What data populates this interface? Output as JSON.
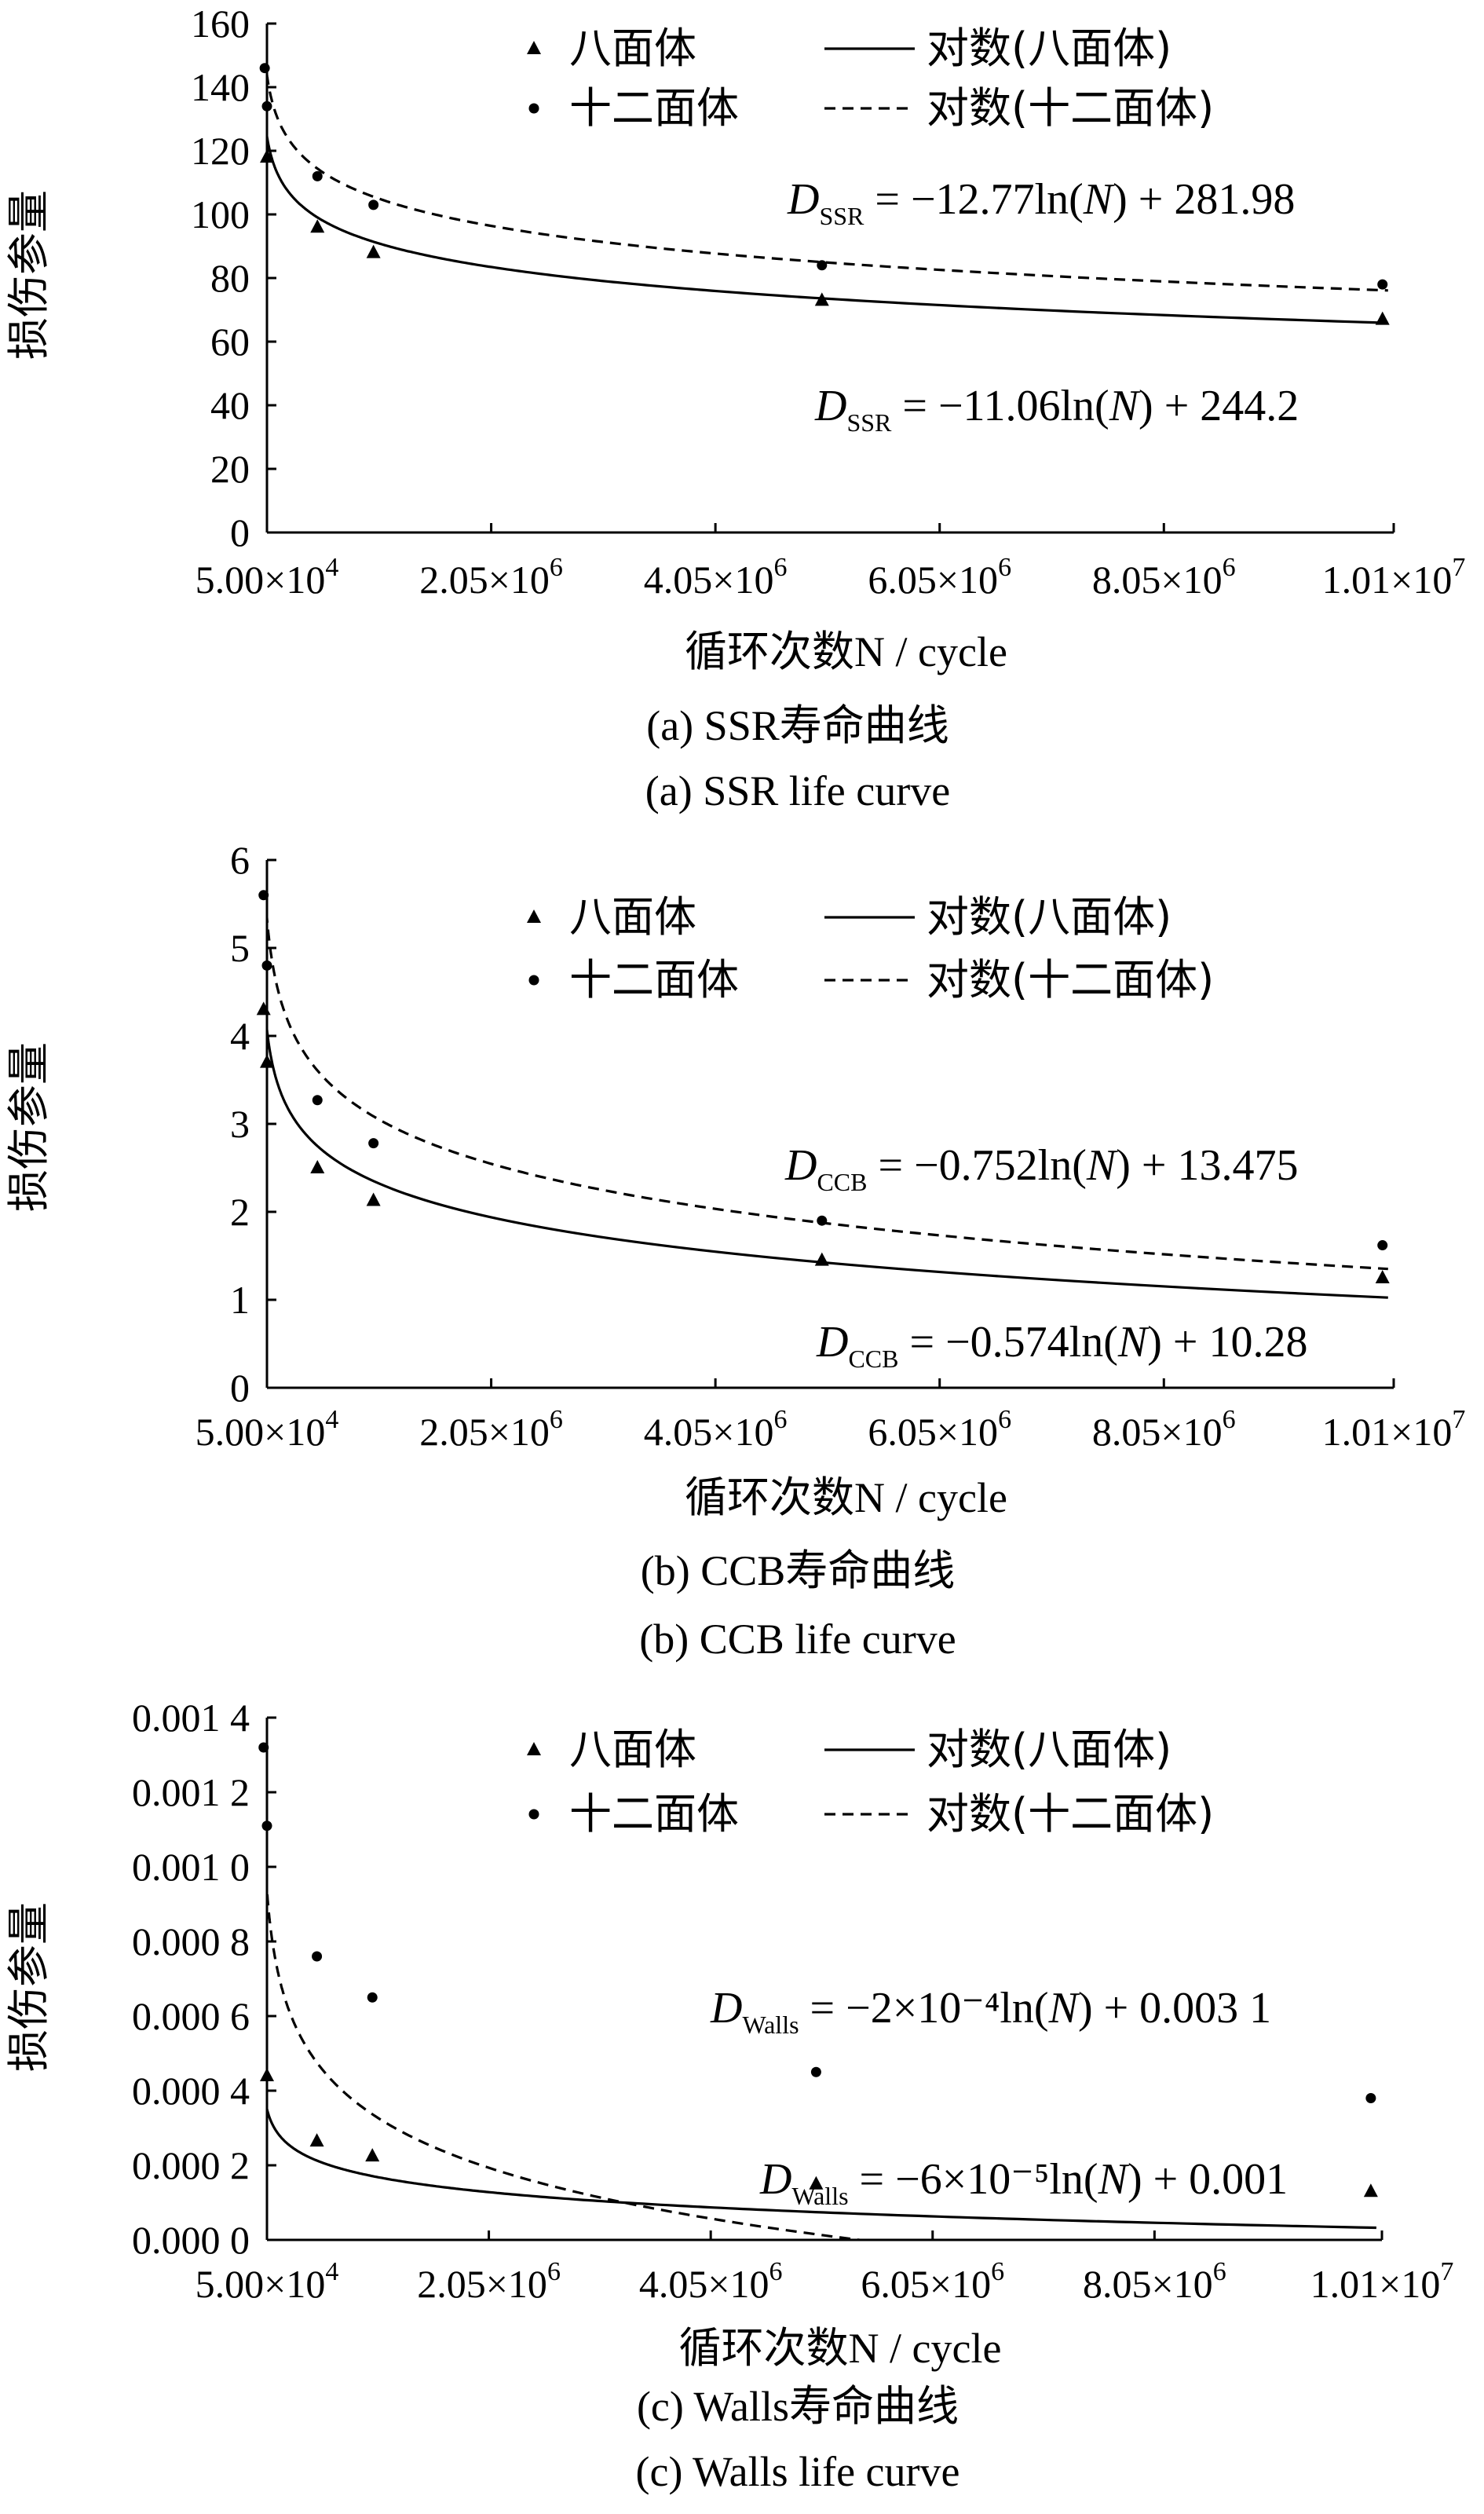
{
  "chart_data": [
    {
      "type": "line",
      "panel": "a",
      "ylabel": "损伤参量",
      "xlabel": "循环次数N / cycle",
      "caption_cn": "(a) SSR寿命曲线",
      "caption_en": "(a) SSR life curve",
      "xlim": [
        50000,
        10100000
      ],
      "ylim": [
        0,
        160
      ],
      "x_ticks": [
        50000,
        2050000,
        4050000,
        6050000,
        8050000,
        10100000
      ],
      "x_tick_labels": [
        [
          "5.00×10",
          "4"
        ],
        [
          "2.05×10",
          "6"
        ],
        [
          "4.05×10",
          "6"
        ],
        [
          "6.05×10",
          "6"
        ],
        [
          "8.05×10",
          "6"
        ],
        [
          "1.01×10",
          "7"
        ]
      ],
      "y_ticks": [
        0,
        20,
        40,
        60,
        80,
        100,
        120,
        140,
        160
      ],
      "y_tick_labels": [
        "0",
        "20",
        "40",
        "60",
        "80",
        "100",
        "120",
        "140",
        "160"
      ],
      "legend": [
        "八面体",
        "十二面体",
        "对数(八面体)",
        "对数(十二面体)"
      ],
      "series": [
        {
          "name": "八面体",
          "marker": "triangle",
          "x": [
            50000,
            500000,
            1000000,
            5000000,
            10000000
          ],
          "y": [
            118,
            96,
            88,
            73,
            67
          ]
        },
        {
          "name": "十二面体",
          "marker": "dot",
          "x": [
            30000,
            50000,
            500000,
            1000000,
            5000000,
            10000000
          ],
          "y": [
            146,
            134,
            112,
            103,
            84,
            78
          ]
        }
      ],
      "fits": [
        {
          "name": "对数(八面体)",
          "style": "solid",
          "a": -11.06,
          "b": 244.2
        },
        {
          "name": "对数(十二面体)",
          "style": "dashed",
          "a": -12.77,
          "b": 281.98
        }
      ],
      "equations": [
        {
          "sub": "SSR",
          "text": " = −12.77ln(N) + 281.98",
          "parts": [
            " = −12.77ln(",
            "N",
            ") + 281.98"
          ]
        },
        {
          "sub": "SSR",
          "text": " = −11.06ln(N) + 244.2",
          "parts": [
            " = −11.06ln(",
            "N",
            ") + 244.2"
          ]
        }
      ]
    },
    {
      "type": "line",
      "panel": "b",
      "ylabel": "损伤参量",
      "xlabel": "循环次数N / cycle",
      "caption_cn": "(b) CCB寿命曲线",
      "caption_en": "(b) CCB life curve",
      "xlim": [
        50000,
        10100000
      ],
      "ylim": [
        0,
        6
      ],
      "x_ticks": [
        50000,
        2050000,
        4050000,
        6050000,
        8050000,
        10100000
      ],
      "x_tick_labels": [
        [
          "5.00×10",
          "4"
        ],
        [
          "2.05×10",
          "6"
        ],
        [
          "4.05×10",
          "6"
        ],
        [
          "6.05×10",
          "6"
        ],
        [
          "8.05×10",
          "6"
        ],
        [
          "1.01×10",
          "7"
        ]
      ],
      "y_ticks": [
        0,
        1,
        2,
        3,
        4,
        5,
        6
      ],
      "y_tick_labels": [
        "0",
        "1",
        "2",
        "3",
        "4",
        "5",
        "6"
      ],
      "legend": [
        "八面体",
        "十二面体",
        "对数(八面体)",
        "对数(十二面体)"
      ],
      "series": [
        {
          "name": "八面体",
          "marker": "triangle",
          "x": [
            20000,
            50000,
            500000,
            1000000,
            5000000,
            10000000
          ],
          "y": [
            4.3,
            3.7,
            2.5,
            2.13,
            1.45,
            1.25
          ]
        },
        {
          "name": "十二面体",
          "marker": "dot",
          "x": [
            20000,
            50000,
            500000,
            1000000,
            5000000,
            10000000
          ],
          "y": [
            5.6,
            4.8,
            3.27,
            2.78,
            1.9,
            1.62
          ]
        }
      ],
      "fits": [
        {
          "name": "对数(八面体)",
          "style": "solid",
          "a": -0.574,
          "b": 10.28
        },
        {
          "name": "对数(十二面体)",
          "style": "dashed",
          "a": -0.752,
          "b": 13.475
        }
      ],
      "equations": [
        {
          "sub": "CCB",
          "text": " = −0.752ln(N) + 13.475",
          "parts": [
            " = −0.752ln(",
            "N",
            ") + 13.475"
          ]
        },
        {
          "sub": "CCB",
          "text": " = −0.574ln(N) + 10.28",
          "parts": [
            " = −0.574ln(",
            "N",
            ") + 10.28"
          ]
        }
      ]
    },
    {
      "type": "line",
      "panel": "c",
      "ylabel": "损伤参量",
      "xlabel": "循环次数N / cycle",
      "caption_cn": "(c) Walls寿命曲线",
      "caption_en": "(c) Walls life curve",
      "xlim": [
        50000,
        10100000
      ],
      "ylim": [
        0,
        0.0014
      ],
      "x_ticks": [
        50000,
        2050000,
        4050000,
        6050000,
        8050000,
        10100000
      ],
      "x_tick_labels": [
        [
          "5.00×10",
          "4"
        ],
        [
          "2.05×10",
          "6"
        ],
        [
          "4.05×10",
          "6"
        ],
        [
          "6.05×10",
          "6"
        ],
        [
          "8.05×10",
          "6"
        ],
        [
          "1.01×10",
          "7"
        ]
      ],
      "y_ticks": [
        0,
        0.0002,
        0.0004,
        0.0006,
        0.0008,
        0.001,
        0.0012,
        0.0014
      ],
      "y_tick_labels": [
        "0.000 0",
        "0.000 2",
        "0.000 4",
        "0.000 6",
        "0.000 8",
        "0.001 0",
        "0.001 2",
        "0.001 4"
      ],
      "legend": [
        "八面体",
        "十二面体",
        "对数(八面体)",
        "对数(十二面体)"
      ],
      "series": [
        {
          "name": "八面体",
          "marker": "triangle",
          "x": [
            50000,
            500000,
            1000000,
            5000000,
            10000000
          ],
          "y": [
            0.00044,
            0.000265,
            0.000225,
            0.00015,
            0.00013
          ]
        },
        {
          "name": "十二面体",
          "marker": "dot",
          "x": [
            20000,
            50000,
            500000,
            1000000,
            5000000,
            10000000
          ],
          "y": [
            0.00132,
            0.00111,
            0.00076,
            0.00065,
            0.00045,
            0.00038
          ]
        }
      ],
      "fits": [
        {
          "name": "对数(八面体)",
          "style": "solid",
          "a": -6e-05,
          "b": 0.001
        },
        {
          "name": "对数(十二面体)",
          "style": "dashed",
          "a": -0.0002,
          "b": 0.0031
        }
      ],
      "equations": [
        {
          "sub": "Walls",
          "text": " = −2×10⁻⁴ln(N) + 0.003 1",
          "parts": [
            " = −2×10⁻⁴ln(",
            "N",
            ") + 0.003 1"
          ]
        },
        {
          "sub": "Walls",
          "text": " = −6×10⁻⁵ln(N) + 0.001",
          "parts": [
            " = −6×10⁻⁵ln(",
            "N",
            ") + 0.001"
          ]
        }
      ]
    }
  ]
}
